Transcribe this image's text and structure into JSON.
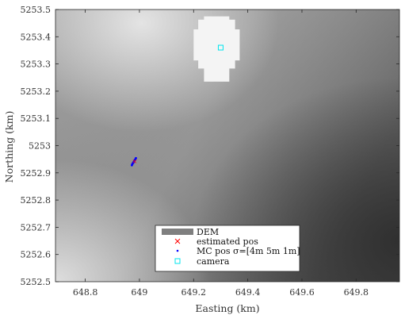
{
  "chart_data": {
    "type": "scatter",
    "xlabel": "Easting (km)",
    "ylabel": "Northing (km)",
    "xlim": [
      648.69,
      649.96
    ],
    "ylim": [
      5252.5,
      5253.5
    ],
    "xticks": [
      648.8,
      649,
      649.2,
      649.4,
      649.6,
      649.8
    ],
    "xtick_labels": [
      "648.8",
      "649",
      "649.2",
      "649.4",
      "649.6",
      "649.8"
    ],
    "yticks": [
      5252.5,
      5252.6,
      5252.7,
      5252.8,
      5252.9,
      5253,
      5253.1,
      5253.2,
      5253.3,
      5253.4,
      5253.5
    ],
    "ytick_labels": [
      "5252.5",
      "5252.6",
      "5252.7",
      "5252.8",
      "5252.9",
      "5253",
      "5253.1",
      "5253.2",
      "5253.3",
      "5253.4",
      "5253.5"
    ],
    "grid": false,
    "background": "DEM grayscale elevation surface (lighter at top-left and bottom-left, darker toward bottom-right)",
    "mask_region": {
      "description": "white no-data patch around camera",
      "center": [
        649.285,
        5253.355
      ],
      "half_width_km": 0.085,
      "half_height_km": 0.12
    },
    "series": [
      {
        "name": "DEM",
        "marker": "patch",
        "color": "#7f7f7f",
        "points": []
      },
      {
        "name": "estimated pos",
        "marker": "x",
        "color": "#ff0000",
        "points": [
          [
            648.982,
            5252.942
          ]
        ]
      },
      {
        "name": "MC pos σ=[4m 5m 1m]",
        "marker": "dot",
        "color": "#0000ff",
        "points": [
          [
            648.972,
            5252.928
          ],
          [
            648.976,
            5252.935
          ],
          [
            648.979,
            5252.94
          ],
          [
            648.982,
            5252.945
          ],
          [
            648.985,
            5252.95
          ],
          [
            648.987,
            5252.954
          ],
          [
            648.974,
            5252.933
          ],
          [
            648.98,
            5252.942
          ],
          [
            648.984,
            5252.948
          ],
          [
            648.977,
            5252.937
          ]
        ]
      },
      {
        "name": "camera",
        "marker": "square",
        "color": "#00e5ee",
        "points": [
          [
            649.3,
            5253.36
          ]
        ]
      }
    ],
    "legend": {
      "placement": "bottom-center",
      "entries": [
        {
          "label": "DEM",
          "marker": "patch",
          "color": "#7f7f7f"
        },
        {
          "label": "estimated pos",
          "marker": "x",
          "color": "#ff0000"
        },
        {
          "label": "MC pos σ=[4m 5m 1m]",
          "marker": "dot",
          "color": "#0000ff"
        },
        {
          "label": "camera",
          "marker": "square",
          "color": "#00e5ee"
        }
      ]
    }
  }
}
